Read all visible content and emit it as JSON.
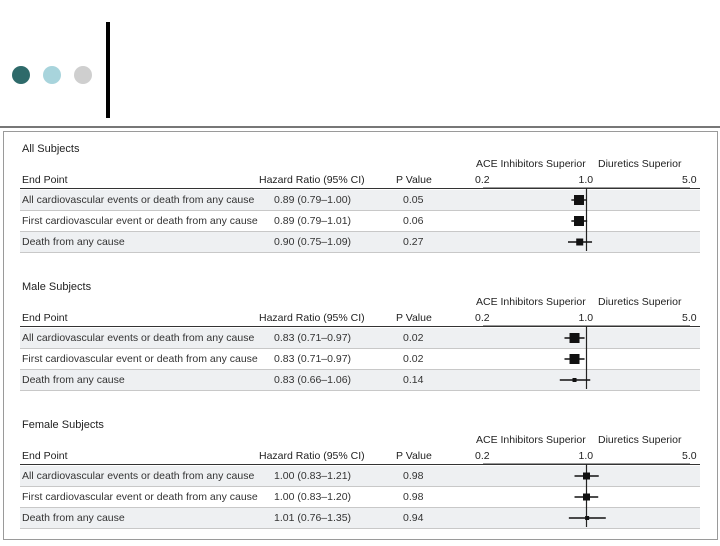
{
  "slide": {
    "bullet_colors": [
      "#2e6a6a",
      "#a8d4dc",
      "#cfcfcf"
    ]
  },
  "chart_data": {
    "type": "forest",
    "axis": {
      "scale": "log",
      "min": 0.2,
      "max": 5.0,
      "reference": 1.0,
      "tick_labels": [
        "0.2",
        "1.0",
        "5.0"
      ]
    },
    "direction_labels": {
      "left": "ACE Inhibitors Superior",
      "right": "Diuretics Superior"
    },
    "columns": {
      "endpoint": "End Point",
      "hr": "Hazard Ratio (95% CI)",
      "p": "P Value"
    },
    "groups": [
      {
        "title": "All Subjects",
        "rows": [
          {
            "label": "All cardiovascular events or death from any cause",
            "hr_text": "0.89 (0.79–1.00)",
            "p": "0.05",
            "hr": 0.89,
            "lo": 0.79,
            "hi": 1.0,
            "size": "large"
          },
          {
            "label": "First cardiovascular event or death from any cause",
            "hr_text": "0.89 (0.79–1.01)",
            "p": "0.06",
            "hr": 0.89,
            "lo": 0.79,
            "hi": 1.01,
            "size": "large"
          },
          {
            "label": "Death from any cause",
            "hr_text": "0.90 (0.75–1.09)",
            "p": "0.27",
            "hr": 0.9,
            "lo": 0.75,
            "hi": 1.09,
            "size": "medium"
          }
        ]
      },
      {
        "title": "Male Subjects",
        "rows": [
          {
            "label": "All cardiovascular events or death from any cause",
            "hr_text": "0.83 (0.71–0.97)",
            "p": "0.02",
            "hr": 0.83,
            "lo": 0.71,
            "hi": 0.97,
            "size": "large"
          },
          {
            "label": "First cardiovascular event or death from any cause",
            "hr_text": "0.83 (0.71–0.97)",
            "p": "0.02",
            "hr": 0.83,
            "lo": 0.71,
            "hi": 0.97,
            "size": "large"
          },
          {
            "label": "Death from any cause",
            "hr_text": "0.83 (0.66–1.06)",
            "p": "0.14",
            "hr": 0.83,
            "lo": 0.66,
            "hi": 1.06,
            "size": "small"
          }
        ]
      },
      {
        "title": "Female Subjects",
        "rows": [
          {
            "label": "All cardiovascular events or death from any cause",
            "hr_text": "1.00 (0.83–1.21)",
            "p": "0.98",
            "hr": 1.0,
            "lo": 0.83,
            "hi": 1.21,
            "size": "medium"
          },
          {
            "label": "First cardiovascular event or death from any cause",
            "hr_text": "1.00 (0.83–1.20)",
            "p": "0.98",
            "hr": 1.0,
            "lo": 0.83,
            "hi": 1.2,
            "size": "medium"
          },
          {
            "label": "Death from any cause",
            "hr_text": "1.01 (0.76–1.35)",
            "p": "0.94",
            "hr": 1.01,
            "lo": 0.76,
            "hi": 1.35,
            "size": "small"
          }
        ]
      }
    ]
  }
}
